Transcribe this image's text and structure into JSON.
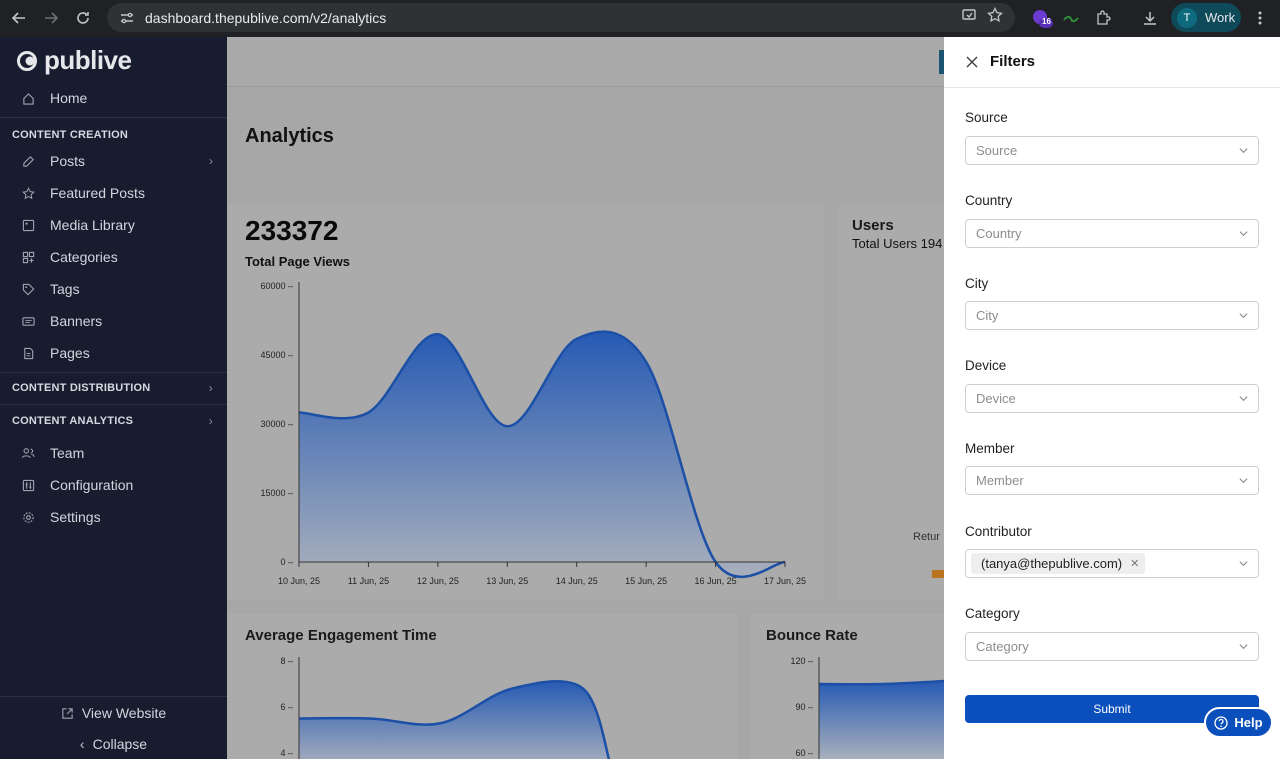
{
  "browser": {
    "url": "dashboard.thepublive.com/v2/analytics",
    "badge_count": "16",
    "profile_initial": "T",
    "profile_label": "Work"
  },
  "sidebar": {
    "logo": "publive",
    "home": "Home",
    "sections": {
      "creation": "CONTENT CREATION",
      "distribution": "CONTENT DISTRIBUTION",
      "analytics": "CONTENT ANALYTICS"
    },
    "creation_items": [
      "Posts",
      "Featured Posts",
      "Media Library",
      "Categories",
      "Tags",
      "Banners",
      "Pages"
    ],
    "other_items": [
      "Team",
      "Configuration",
      "Settings"
    ],
    "view_website": "View Website",
    "collapse": "Collapse"
  },
  "main": {
    "page_title": "Analytics",
    "total_page_views": "233372",
    "total_page_views_label": "Total Page Views",
    "users_title": "Users",
    "users_sub": "Total Users 194",
    "return_label": "Retur",
    "engagement_title": "Average Engagement Time",
    "bounce_title": "Bounce Rate"
  },
  "chart_data": [
    {
      "type": "area",
      "title": "Total Page Views",
      "x": [
        "10 Jun, 25",
        "11 Jun, 25",
        "12 Jun, 25",
        "13 Jun, 25",
        "14 Jun, 25",
        "15 Jun, 25",
        "16 Jun, 25",
        "17 Jun, 25"
      ],
      "values": [
        32500,
        32500,
        49500,
        29500,
        48500,
        43500,
        0,
        0
      ],
      "y_ticks": [
        "60000",
        "45000",
        "30000",
        "15000",
        "0"
      ],
      "ylim": [
        0,
        60000
      ]
    },
    {
      "type": "area",
      "title": "Average Engagement Time",
      "y_ticks": [
        "8",
        "6",
        "4"
      ],
      "values": [
        5.5,
        5.5,
        5.3,
        6.8,
        6.8
      ]
    },
    {
      "type": "area",
      "title": "Bounce Rate",
      "y_ticks": [
        "120",
        "90",
        "60"
      ],
      "values": [
        105,
        105,
        107
      ]
    }
  ],
  "filters": {
    "title": "Filters",
    "fields": [
      {
        "label": "Source",
        "placeholder": "Source"
      },
      {
        "label": "Country",
        "placeholder": "Country"
      },
      {
        "label": "City",
        "placeholder": "City"
      },
      {
        "label": "Device",
        "placeholder": "Device"
      },
      {
        "label": "Member",
        "placeholder": "Member"
      },
      {
        "label": "Contributor",
        "chip": "(tanya@thepublive.com)"
      },
      {
        "label": "Category",
        "placeholder": "Category"
      }
    ],
    "submit": "Submit",
    "help": "Help"
  }
}
